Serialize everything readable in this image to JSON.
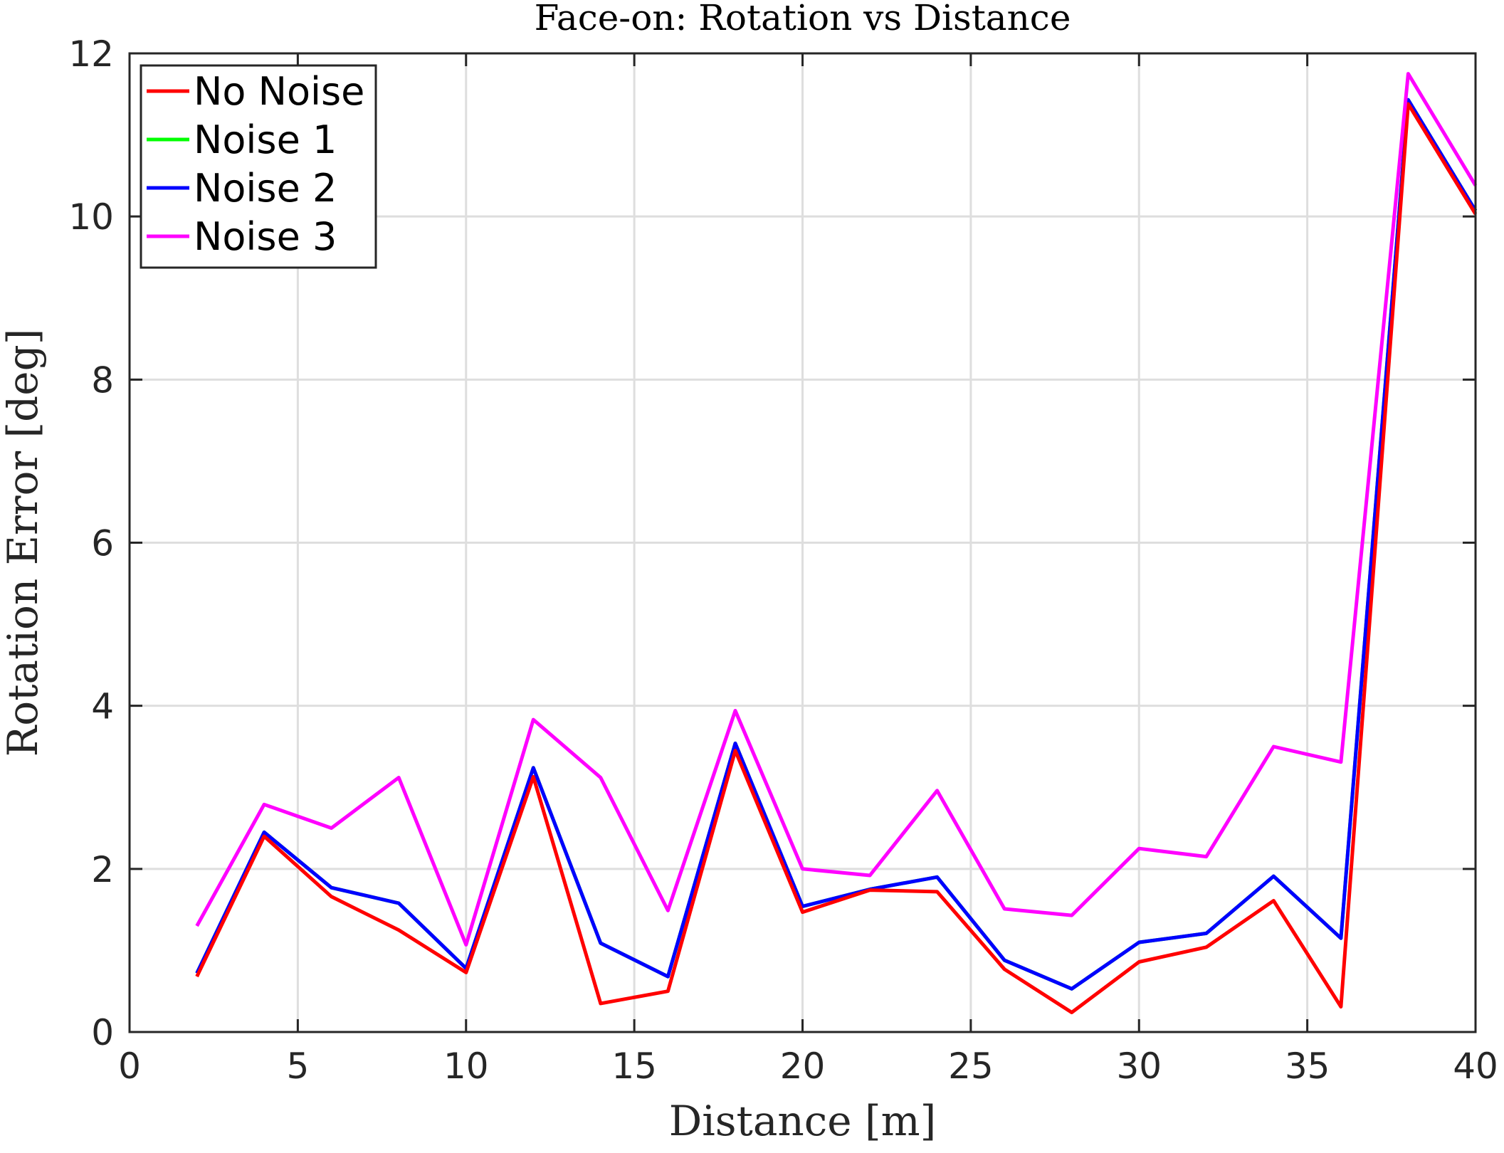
{
  "chart_data": {
    "type": "line",
    "title": "Face-on: Rotation vs Distance",
    "xlabel": "Distance [m]",
    "ylabel": "Rotation Error [deg]",
    "xlim": [
      0,
      40
    ],
    "ylim": [
      0,
      12
    ],
    "xticks": [
      "0",
      "5",
      "10",
      "15",
      "20",
      "25",
      "30",
      "35",
      "40"
    ],
    "yticks": [
      "0",
      "2",
      "4",
      "6",
      "8",
      "10",
      "12"
    ],
    "grid": true,
    "legend_position": "top-left",
    "x": [
      2,
      4,
      6,
      8,
      10,
      12,
      14,
      16,
      18,
      20,
      22,
      24,
      26,
      28,
      30,
      32,
      34,
      36,
      38,
      40
    ],
    "series": [
      {
        "name": "No Noise",
        "color": "#ff0000",
        "values": [
          0.68,
          2.4,
          1.66,
          1.25,
          0.73,
          3.13,
          0.35,
          0.5,
          3.45,
          1.47,
          1.74,
          1.72,
          0.77,
          0.24,
          0.86,
          1.04,
          1.61,
          0.31,
          11.38,
          10.03
        ]
      },
      {
        "name": "Noise 1",
        "color": "#00ff00",
        "values": [
          0.72,
          2.45,
          1.77,
          1.58,
          0.78,
          3.24,
          1.09,
          0.68,
          3.54,
          1.54,
          1.75,
          1.9,
          0.88,
          0.53,
          1.1,
          1.21,
          1.91,
          1.15,
          11.43,
          10.07
        ]
      },
      {
        "name": "Noise 2",
        "color": "#0000ff",
        "values": [
          0.72,
          2.45,
          1.77,
          1.58,
          0.78,
          3.24,
          1.09,
          0.68,
          3.54,
          1.54,
          1.75,
          1.9,
          0.88,
          0.53,
          1.1,
          1.21,
          1.91,
          1.15,
          11.43,
          10.07
        ]
      },
      {
        "name": "Noise 3",
        "color": "#ff00ff",
        "values": [
          1.3,
          2.79,
          2.5,
          3.12,
          1.07,
          3.83,
          3.12,
          1.49,
          3.94,
          2.0,
          1.92,
          2.96,
          1.51,
          1.43,
          2.25,
          2.15,
          3.5,
          3.31,
          11.75,
          10.38
        ]
      }
    ]
  }
}
